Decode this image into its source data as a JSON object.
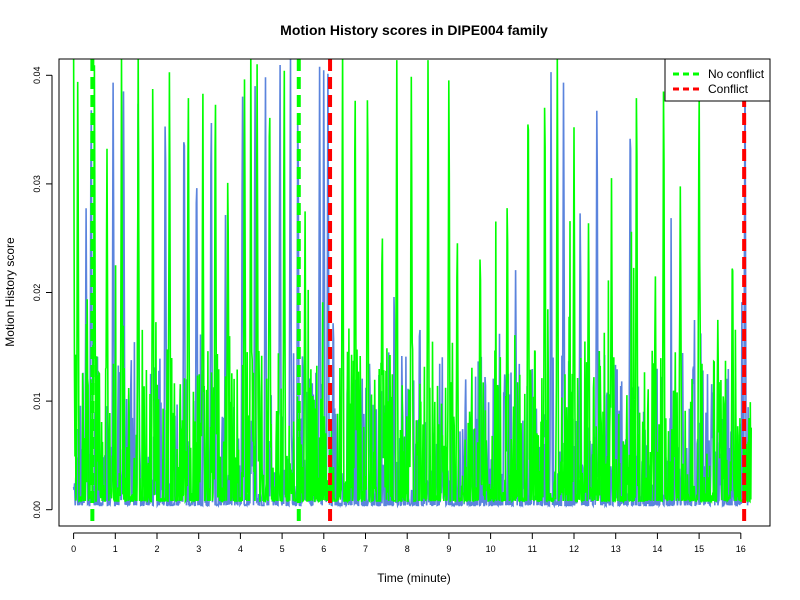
{
  "chart_data": {
    "type": "line",
    "title": "Motion History scores in DIPE004 family",
    "xlabel": "Time (minute)",
    "ylabel": "Motion History score",
    "xlim": [
      -0.35,
      16.7
    ],
    "ylim": [
      -0.0015,
      0.0415
    ],
    "x_ticks": [
      0,
      1,
      2,
      3,
      4,
      5,
      6,
      7,
      8,
      9,
      10,
      11,
      12,
      13,
      14,
      15,
      16
    ],
    "x_tick_labels": [
      "0",
      "1",
      "2",
      "3",
      "4",
      "5",
      "6",
      "7",
      "8",
      "9",
      "10",
      "11",
      "12",
      "13",
      "14",
      "15",
      "16"
    ],
    "y_ticks": [
      0.0,
      0.01,
      0.02,
      0.03,
      0.04
    ],
    "y_tick_labels": [
      "0.00",
      "0.01",
      "0.02",
      "0.03",
      "0.04"
    ],
    "grid": false,
    "legend": {
      "position": "top-right",
      "entries": [
        {
          "label": "No conflict",
          "color": "#00ff00",
          "style": "dashed"
        },
        {
          "label": "Conflict",
          "color": "#ff0000",
          "style": "dashed"
        }
      ]
    },
    "series": [
      {
        "color": "#5b84dd",
        "x_end": 16.2,
        "n_points": 1300,
        "baseline": 0.0004,
        "spikes": [
          {
            "x": 0.3,
            "y": 0.028
          },
          {
            "x": 0.42,
            "y": 0.042
          },
          {
            "x": 0.95,
            "y": 0.042
          },
          {
            "x": 1.2,
            "y": 0.042
          },
          {
            "x": 1.55,
            "y": 0.042
          },
          {
            "x": 2.2,
            "y": 0.042
          },
          {
            "x": 2.65,
            "y": 0.042
          },
          {
            "x": 2.95,
            "y": 0.036
          },
          {
            "x": 3.3,
            "y": 0.042
          },
          {
            "x": 4.05,
            "y": 0.042
          },
          {
            "x": 4.35,
            "y": 0.042
          },
          {
            "x": 4.6,
            "y": 0.042
          },
          {
            "x": 4.95,
            "y": 0.042
          },
          {
            "x": 5.2,
            "y": 0.042
          },
          {
            "x": 5.38,
            "y": 0.042
          },
          {
            "x": 5.9,
            "y": 0.042
          },
          {
            "x": 6.0,
            "y": 0.042
          },
          {
            "x": 6.1,
            "y": 0.042
          },
          {
            "x": 7.1,
            "y": 0.015
          },
          {
            "x": 8.3,
            "y": 0.02
          },
          {
            "x": 9.4,
            "y": 0.013
          },
          {
            "x": 10.6,
            "y": 0.022
          },
          {
            "x": 11.45,
            "y": 0.042
          },
          {
            "x": 11.75,
            "y": 0.042
          },
          {
            "x": 12.15,
            "y": 0.03
          },
          {
            "x": 12.55,
            "y": 0.042
          },
          {
            "x": 13.35,
            "y": 0.042
          },
          {
            "x": 14.6,
            "y": 0.016
          },
          {
            "x": 15.3,
            "y": 0.012
          },
          {
            "x": 16.1,
            "y": 0.042
          }
        ]
      },
      {
        "color": "#00ff00",
        "x_end": 16.25,
        "n_points": 1500,
        "baseline": 0.0008,
        "spikes": [
          {
            "x": 0.0,
            "y": 0.042
          },
          {
            "x": 0.1,
            "y": 0.042
          },
          {
            "x": 0.5,
            "y": 0.042
          },
          {
            "x": 0.8,
            "y": 0.035
          },
          {
            "x": 1.15,
            "y": 0.042
          },
          {
            "x": 1.55,
            "y": 0.042
          },
          {
            "x": 1.9,
            "y": 0.042
          },
          {
            "x": 2.3,
            "y": 0.042
          },
          {
            "x": 2.75,
            "y": 0.042
          },
          {
            "x": 3.1,
            "y": 0.038
          },
          {
            "x": 3.4,
            "y": 0.042
          },
          {
            "x": 3.7,
            "y": 0.033
          },
          {
            "x": 4.1,
            "y": 0.042
          },
          {
            "x": 4.25,
            "y": 0.042
          },
          {
            "x": 4.4,
            "y": 0.042
          },
          {
            "x": 4.7,
            "y": 0.042
          },
          {
            "x": 5.05,
            "y": 0.042
          },
          {
            "x": 5.55,
            "y": 0.027
          },
          {
            "x": 6.45,
            "y": 0.042
          },
          {
            "x": 6.75,
            "y": 0.042
          },
          {
            "x": 7.05,
            "y": 0.042
          },
          {
            "x": 7.4,
            "y": 0.028
          },
          {
            "x": 7.75,
            "y": 0.042
          },
          {
            "x": 8.1,
            "y": 0.042
          },
          {
            "x": 8.5,
            "y": 0.042
          },
          {
            "x": 9.0,
            "y": 0.042
          },
          {
            "x": 9.2,
            "y": 0.027
          },
          {
            "x": 9.75,
            "y": 0.026
          },
          {
            "x": 10.4,
            "y": 0.031
          },
          {
            "x": 10.9,
            "y": 0.042
          },
          {
            "x": 11.3,
            "y": 0.042
          },
          {
            "x": 11.6,
            "y": 0.042
          },
          {
            "x": 12.0,
            "y": 0.035
          },
          {
            "x": 12.35,
            "y": 0.028
          },
          {
            "x": 12.9,
            "y": 0.03
          },
          {
            "x": 13.5,
            "y": 0.042
          },
          {
            "x": 13.95,
            "y": 0.022
          },
          {
            "x": 14.15,
            "y": 0.042
          },
          {
            "x": 14.55,
            "y": 0.031
          },
          {
            "x": 15.0,
            "y": 0.042
          },
          {
            "x": 15.45,
            "y": 0.018
          },
          {
            "x": 15.8,
            "y": 0.026
          }
        ]
      }
    ],
    "event_lines": [
      {
        "type": "No conflict",
        "x": 0.45,
        "color": "#00ff00"
      },
      {
        "type": "No conflict",
        "x": 5.4,
        "color": "#00ff00"
      },
      {
        "type": "Conflict",
        "x": 6.15,
        "color": "#ff0000"
      },
      {
        "type": "Conflict",
        "x": 16.08,
        "color": "#ff0000"
      }
    ]
  }
}
